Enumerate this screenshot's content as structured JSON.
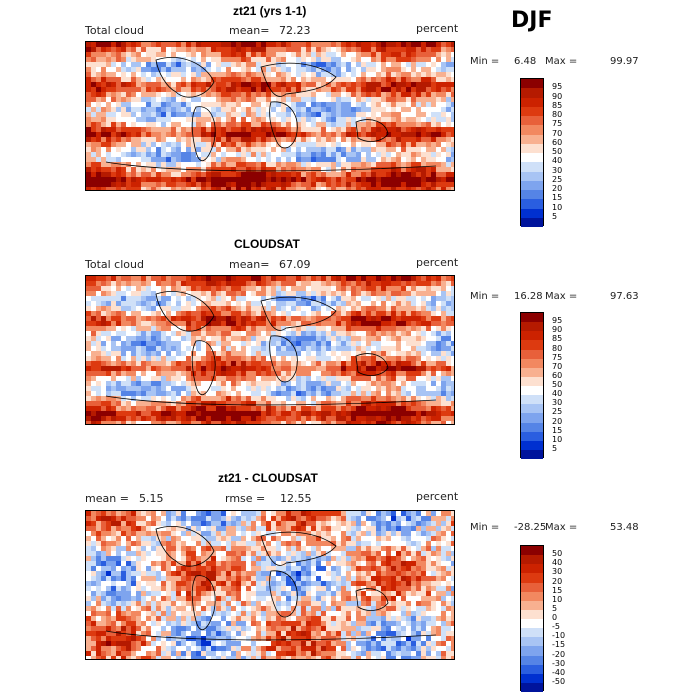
{
  "season": "DJF",
  "panels": [
    {
      "title": "zt21 (yrs 1-1)",
      "left_label": "Total cloud",
      "stat_label": "mean=",
      "stat_value": "72.23",
      "stat2_label": "",
      "stat2_value": "",
      "units": "percent",
      "min_label": "Min =",
      "min_value": "6.48",
      "max_label": "Max =",
      "max_value": "99.97",
      "colorbar_ticks": [
        "95",
        "90",
        "85",
        "80",
        "75",
        "70",
        "60",
        "50",
        "40",
        "30",
        "25",
        "20",
        "15",
        "10",
        "5"
      ]
    },
    {
      "title": "CLOUDSAT",
      "left_label": "Total cloud",
      "stat_label": "mean=",
      "stat_value": "67.09",
      "stat2_label": "",
      "stat2_value": "",
      "units": "percent",
      "min_label": "Min =",
      "min_value": "16.28",
      "max_label": "Max =",
      "max_value": "97.63",
      "colorbar_ticks": [
        "95",
        "90",
        "85",
        "80",
        "75",
        "70",
        "60",
        "50",
        "40",
        "30",
        "25",
        "20",
        "15",
        "10",
        "5"
      ]
    },
    {
      "title": "zt21 - CLOUDSAT",
      "left_label": "mean =",
      "stat_label": "",
      "stat_value": "5.15",
      "stat2_label": "rmse =",
      "stat2_value": "12.55",
      "units": "percent",
      "min_label": "Min =",
      "min_value": "-28.25",
      "max_label": "Max =",
      "max_value": "53.48",
      "colorbar_ticks": [
        "50",
        "40",
        "30",
        "20",
        "15",
        "10",
        "5",
        "0",
        "-5",
        "-10",
        "-15",
        "-20",
        "-30",
        "-40",
        "-50"
      ]
    }
  ],
  "colors": {
    "colorbar": [
      "#8b0000",
      "#b51a00",
      "#cc2200",
      "#dd3a10",
      "#e8603a",
      "#f28860",
      "#f8b090",
      "#fde0d0",
      "#ffffff",
      "#cfe0f8",
      "#a8c4f4",
      "#7ea4ee",
      "#5584e6",
      "#2a5ee0",
      "#0030d0",
      "#00149c"
    ]
  }
}
